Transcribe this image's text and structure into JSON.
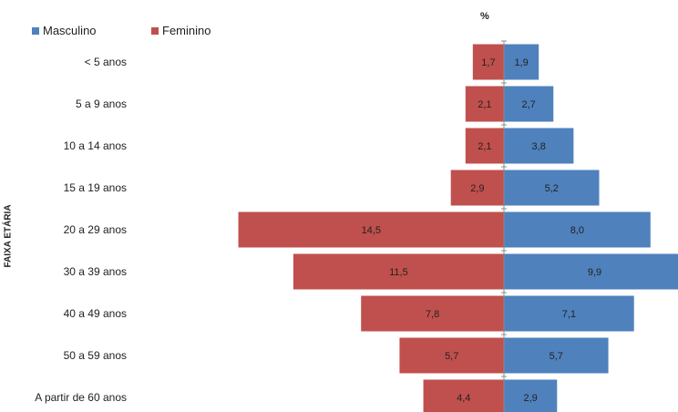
{
  "chart_data": {
    "type": "bar",
    "orientation": "horizontal",
    "subtype": "population-pyramid",
    "unit_label": "%",
    "ylabel": "FAIXA ETÁRIA",
    "categories": [
      "< 5 anos",
      "5 a 9 anos",
      "10 a 14 anos",
      "15 a 19 anos",
      "20 a 29 anos",
      "30 a 39 anos",
      "40 a 49 anos",
      "50 a 59 anos",
      "A partir de 60 anos"
    ],
    "series": [
      {
        "name": "Masculino",
        "color": "#4f81bd",
        "values": [
          1.9,
          2.7,
          3.8,
          5.2,
          8.0,
          9.9,
          7.1,
          5.7,
          2.9
        ],
        "labels": [
          "1,9",
          "2,7",
          "3,8",
          "5,2",
          "8,0",
          "9,9",
          "7,1",
          "5,7",
          "2,9"
        ]
      },
      {
        "name": "Feminino",
        "color": "#c0504d",
        "values": [
          1.7,
          2.1,
          2.1,
          2.9,
          14.5,
          11.5,
          7.8,
          5.7,
          4.4
        ],
        "labels": [
          "1,7",
          "2,1",
          "2,1",
          "2,9",
          "14,5",
          "11,5",
          "7,8",
          "5,7",
          "4,4"
        ]
      }
    ],
    "legend_position": "top-left",
    "grid": false
  }
}
